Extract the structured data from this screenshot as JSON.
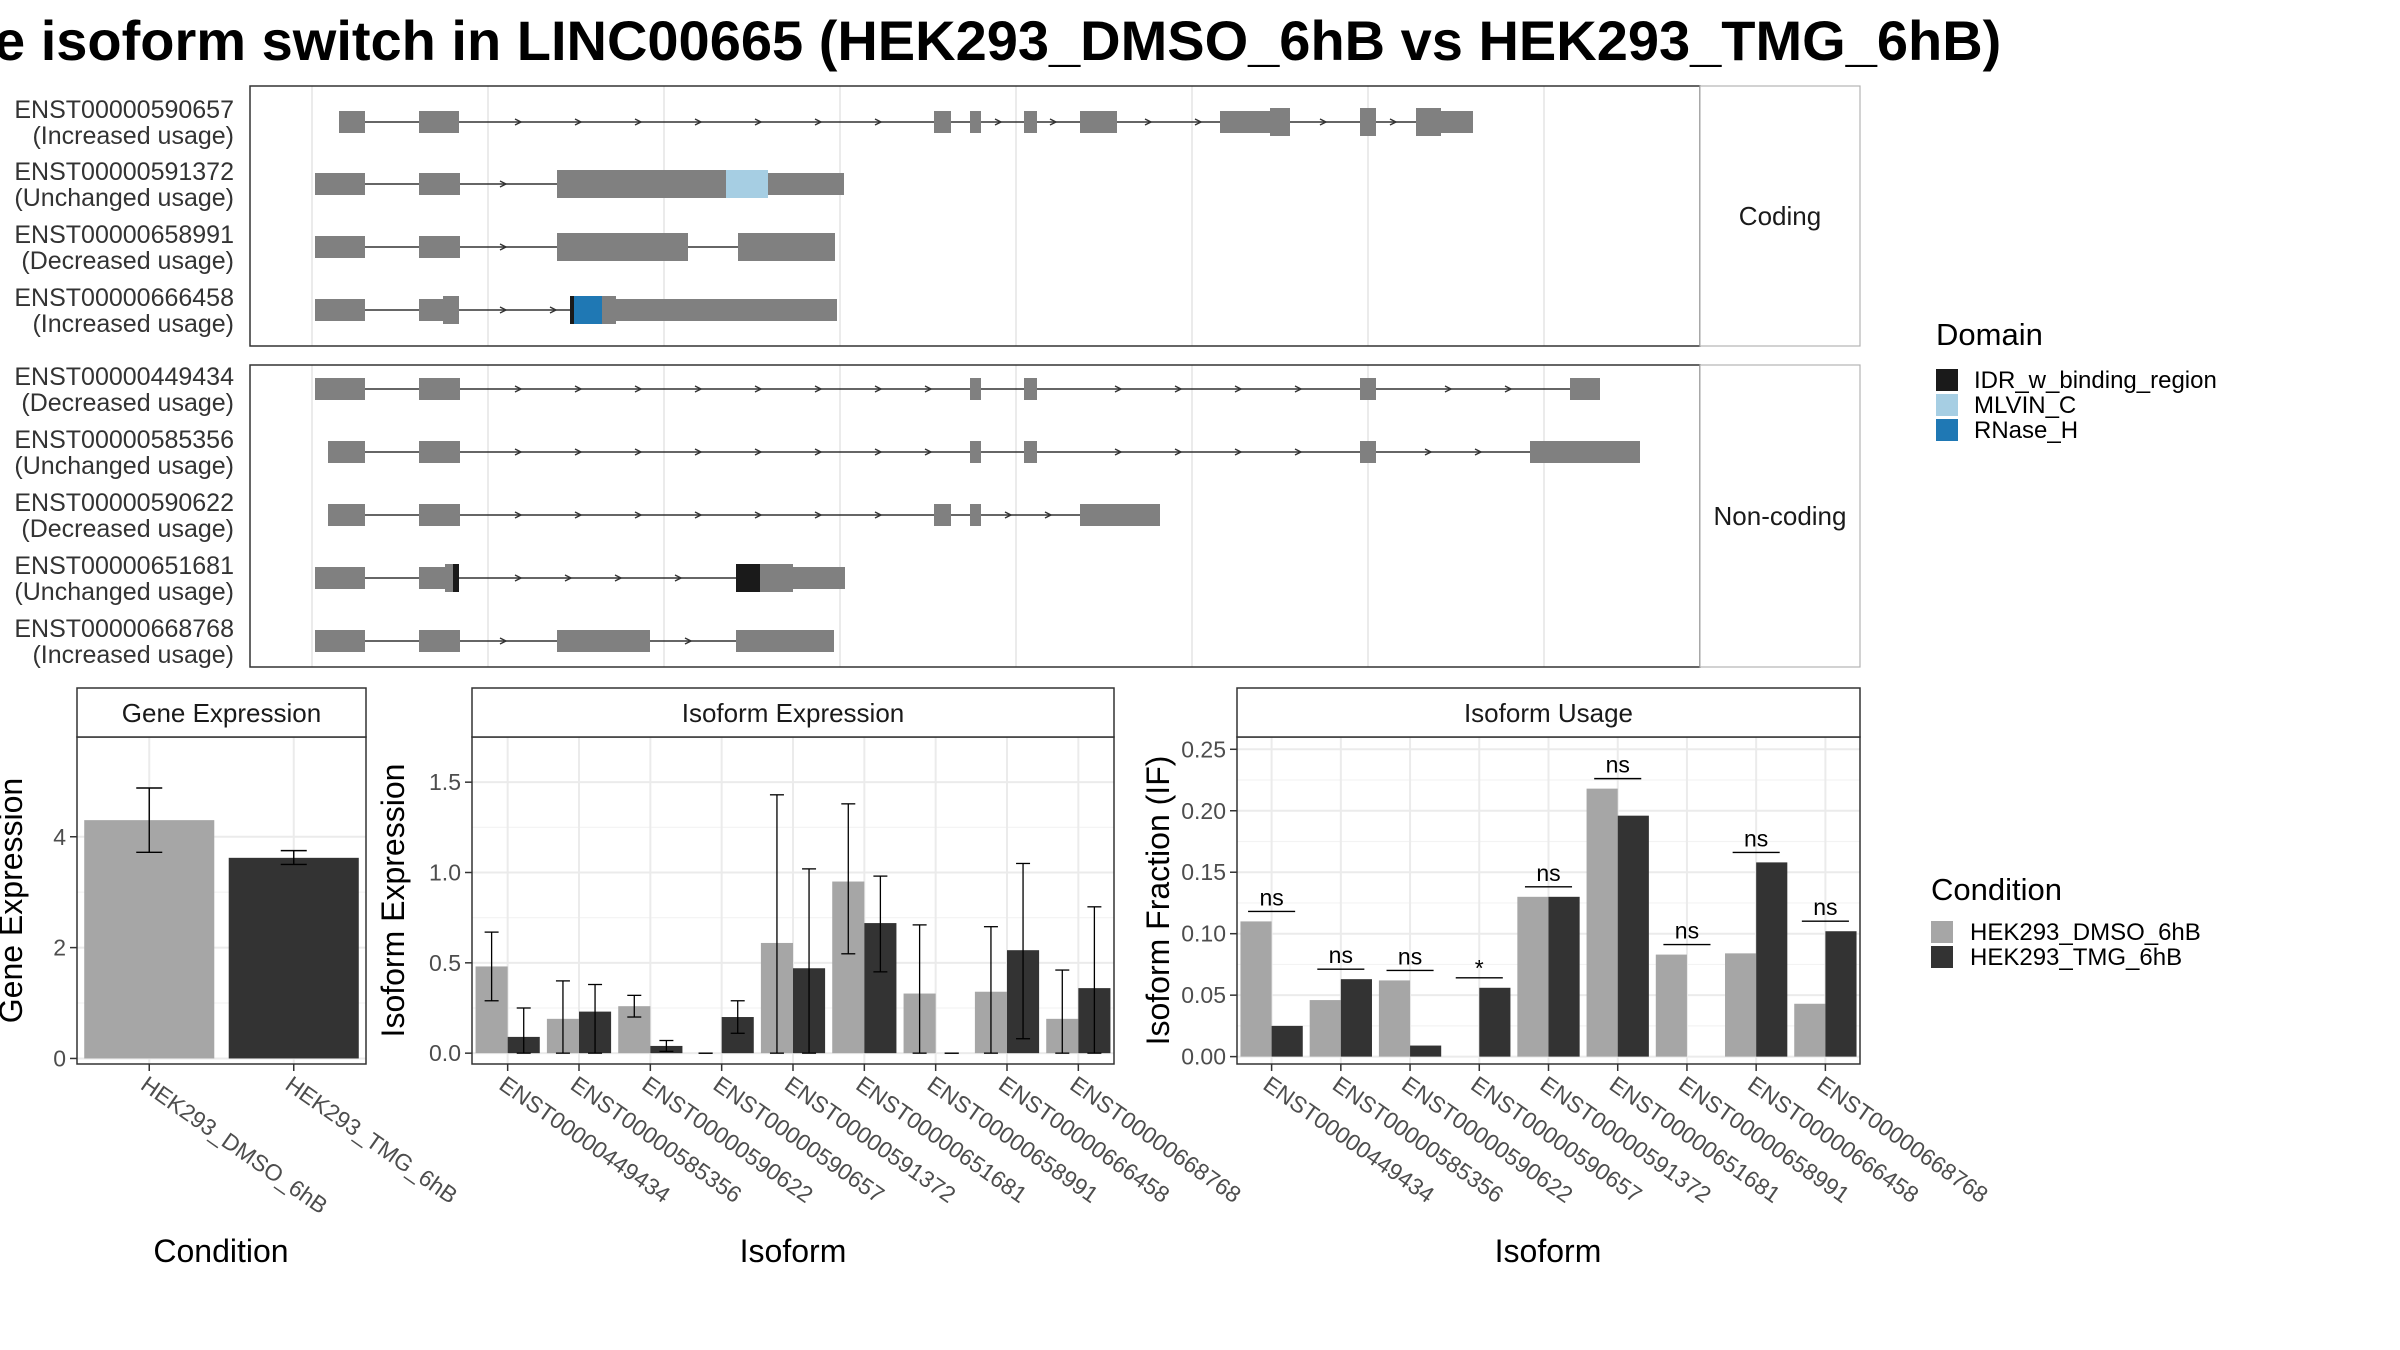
{
  "title": "e isoform switch in LINC00665 (HEK293_DMSO_6hB vs HEK293_TMG_6hB)",
  "structure": {
    "facets": [
      "Coding",
      "Non-coding"
    ],
    "coding": [
      {
        "id": "ENST00000590657",
        "usage": "(Increased usage)"
      },
      {
        "id": "ENST00000591372",
        "usage": "(Unchanged usage)"
      },
      {
        "id": "ENST00000658991",
        "usage": "(Decreased usage)"
      },
      {
        "id": "ENST00000666458",
        "usage": "(Increased usage)"
      }
    ],
    "noncoding": [
      {
        "id": "ENST00000449434",
        "usage": "(Decreased usage)"
      },
      {
        "id": "ENST00000585356",
        "usage": "(Unchanged usage)"
      },
      {
        "id": "ENST00000590622",
        "usage": "(Decreased usage)"
      },
      {
        "id": "ENST00000651681",
        "usage": "(Unchanged usage)"
      },
      {
        "id": "ENST00000668768",
        "usage": "(Increased usage)"
      }
    ]
  },
  "legend_domain": {
    "title": "Domain",
    "items": [
      {
        "label": "IDR_w_binding_region",
        "color": "#1a1a1a"
      },
      {
        "label": "MLVIN_C",
        "color": "#a6cee3"
      },
      {
        "label": "RNase_H",
        "color": "#1f78b4"
      }
    ]
  },
  "legend_condition": {
    "title": "Condition",
    "items": [
      {
        "label": "HEK293_DMSO_6hB",
        "color": "#a6a6a6"
      },
      {
        "label": "HEK293_TMG_6hB",
        "color": "#333333"
      }
    ]
  },
  "colors": {
    "exon": "#808080",
    "intron": "#333333",
    "grid": "#ebebeb",
    "border": "#333333"
  },
  "chart_data": [
    {
      "type": "bar",
      "title": "Gene Expression",
      "xlabel": "Condition",
      "ylabel": "Gene Expression",
      "ylim": [
        -0.1,
        5.8
      ],
      "yticks": [
        0,
        2,
        4
      ],
      "categories": [
        "HEK293_DMSO_6hB",
        "HEK293_TMG_6hB"
      ],
      "values": [
        4.3,
        3.62
      ],
      "error_low": [
        3.72,
        3.5
      ],
      "error_high": [
        4.88,
        3.75
      ]
    },
    {
      "type": "bar",
      "title": "Isoform Expression",
      "xlabel": "Isoform",
      "ylabel": "Isoform Expression",
      "ylim": [
        -0.06,
        1.75
      ],
      "yticks": [
        0.0,
        0.5,
        1.0,
        1.5
      ],
      "categories": [
        "ENST00000449434",
        "ENST00000585356",
        "ENST00000590622",
        "ENST00000590657",
        "ENST00000591372",
        "ENST00000651681",
        "ENST00000658991",
        "ENST00000666458",
        "ENST00000668768"
      ],
      "series": [
        {
          "name": "HEK293_DMSO_6hB",
          "values": [
            0.48,
            0.19,
            0.26,
            0.0,
            0.61,
            0.95,
            0.33,
            0.34,
            0.19
          ],
          "error_low": [
            0.29,
            0.0,
            0.2,
            0.0,
            0.0,
            0.55,
            0.0,
            0.0,
            0.0
          ],
          "error_high": [
            0.67,
            0.4,
            0.32,
            0.0,
            1.43,
            1.38,
            0.71,
            0.7,
            0.46
          ]
        },
        {
          "name": "HEK293_TMG_6hB",
          "values": [
            0.09,
            0.23,
            0.04,
            0.2,
            0.47,
            0.72,
            0.0,
            0.57,
            0.36
          ],
          "error_low": [
            0.0,
            0.0,
            0.01,
            0.11,
            0.0,
            0.45,
            0.0,
            0.08,
            0.0
          ],
          "error_high": [
            0.25,
            0.38,
            0.07,
            0.29,
            1.02,
            0.98,
            0.0,
            1.05,
            0.81
          ]
        }
      ]
    },
    {
      "type": "bar",
      "title": "Isoform Usage",
      "xlabel": "Isoform",
      "ylabel": "Isoform Fraction (IF)",
      "ylim": [
        -0.006,
        0.26
      ],
      "yticks": [
        0.0,
        0.05,
        0.1,
        0.15,
        0.2,
        0.25
      ],
      "yticklabels": [
        "0.00",
        "0.05",
        "0.10",
        "0.15",
        "0.20",
        "0.25"
      ],
      "categories": [
        "ENST00000449434",
        "ENST00000585356",
        "ENST00000590622",
        "ENST00000590657",
        "ENST00000591372",
        "ENST00000651681",
        "ENST00000658991",
        "ENST00000666458",
        "ENST00000668768"
      ],
      "series": [
        {
          "name": "HEK293_DMSO_6hB",
          "values": [
            0.11,
            0.046,
            0.062,
            0.0,
            0.13,
            0.218,
            0.083,
            0.084,
            0.043
          ]
        },
        {
          "name": "HEK293_TMG_6hB",
          "values": [
            0.025,
            0.063,
            0.009,
            0.056,
            0.13,
            0.196,
            0.0,
            0.158,
            0.102
          ]
        }
      ],
      "significance": [
        "ns",
        "ns",
        "ns",
        "*",
        "ns",
        "ns",
        "ns",
        "ns",
        "ns"
      ]
    }
  ]
}
